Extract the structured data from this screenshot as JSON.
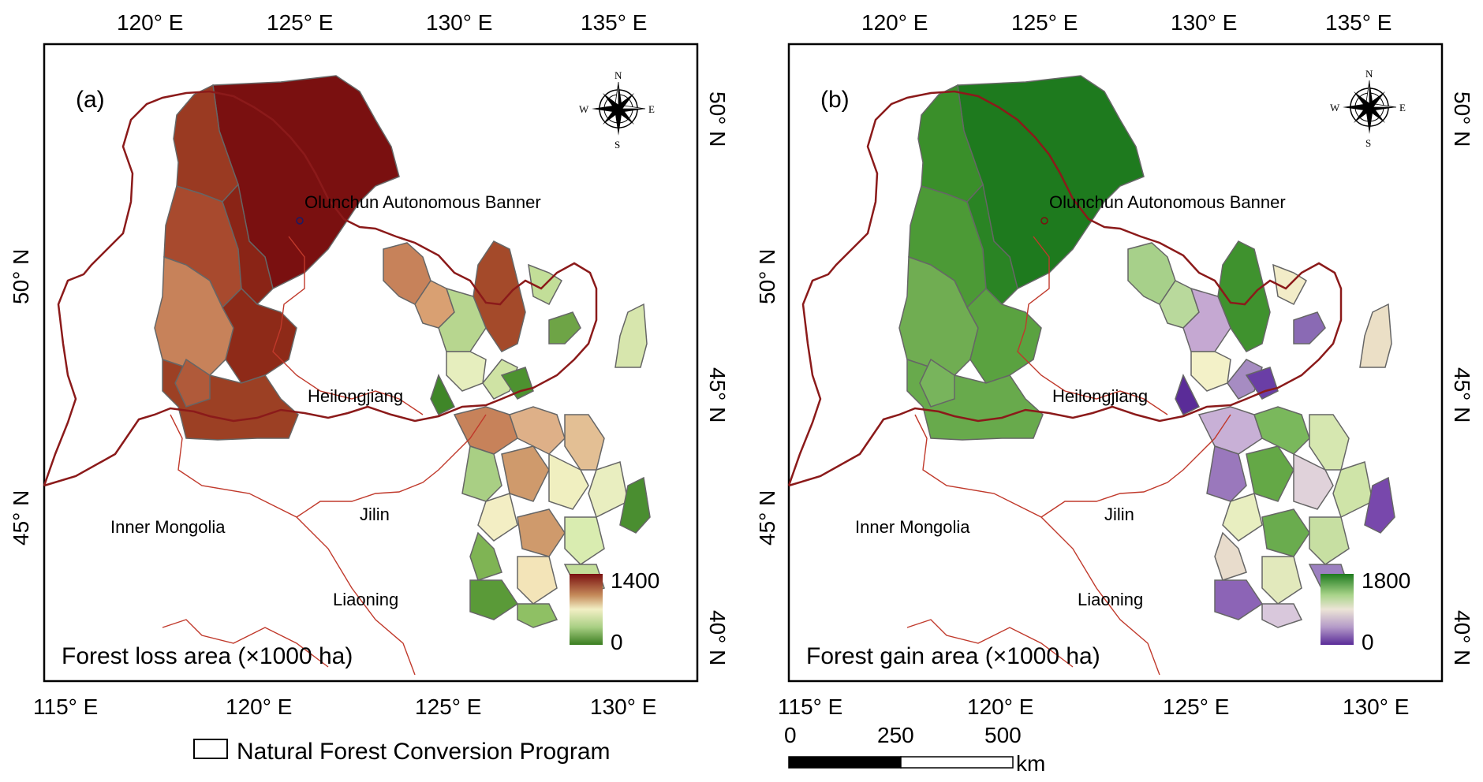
{
  "panels": [
    {
      "letter": "(a)",
      "top_lon_ticks": [
        "120° E",
        "125° E",
        "130° E",
        "135° E"
      ],
      "bottom_lon_ticks": [
        "115° E",
        "120° E",
        "125° E",
        "130° E"
      ],
      "left_lat_ticks": [
        "50° N",
        "45° N"
      ],
      "right_lat_ticks": [
        "50° N",
        "45° N",
        "40° N"
      ],
      "places": {
        "banner": "Olunchun Autonomous Banner",
        "heilongjiang": "Heilongjiang",
        "jilin": "Jilin",
        "inner_mongolia": "Inner Mongolia",
        "liaoning": "Liaoning"
      },
      "caption": "Forest loss area (×1000 ha)",
      "legend": {
        "max": "1400",
        "min": "0",
        "colors": [
          "#7a1010",
          "#c58a5a",
          "#f2efc4",
          "#a9cf84",
          "#3a7d20"
        ]
      }
    },
    {
      "letter": "(b)",
      "top_lon_ticks": [
        "120° E",
        "125° E",
        "130° E",
        "135° E"
      ],
      "bottom_lon_ticks": [
        "115° E",
        "120° E",
        "125° E",
        "130° E"
      ],
      "left_lat_ticks": [
        "50° N",
        "45° N"
      ],
      "right_lat_ticks": [
        "50° N",
        "45° N",
        "40° N"
      ],
      "places": {
        "banner": "Olunchun Autonomous Banner",
        "heilongjiang": "Heilongjiang",
        "jilin": "Jilin",
        "inner_mongolia": "Inner Mongolia",
        "liaoning": "Liaoning"
      },
      "caption": "Forest gain area (×1000 ha)",
      "legend": {
        "max": "1800",
        "min": "0",
        "colors": [
          "#1e7a1e",
          "#a9d48a",
          "#ece4d6",
          "#b49ac8",
          "#5a2c98"
        ]
      }
    }
  ],
  "compass": {
    "n": "N",
    "s": "S",
    "e": "E",
    "w": "W"
  },
  "program_legend": "Natural Forest Conversion Program",
  "scale_bar": {
    "labels": [
      "0",
      "250",
      "500"
    ],
    "unit": "km"
  }
}
